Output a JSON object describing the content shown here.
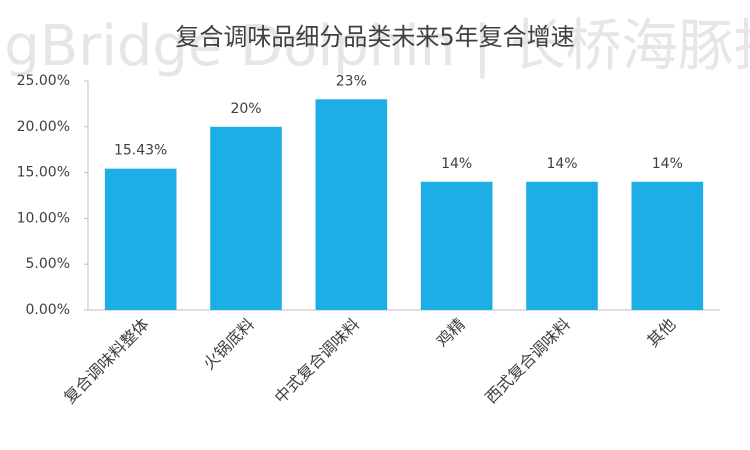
{
  "chart_data": {
    "type": "bar",
    "title": "复合调味品细分品类未来5年复合增速",
    "watermark": "LongBridge Dolphin | 长桥海豚投研",
    "categories": [
      "复合调味料整体",
      "火锅底料",
      "中式复合调味料",
      "鸡精",
      "西式复合调味料",
      "其他"
    ],
    "values": [
      15.43,
      20,
      23,
      14,
      14,
      14
    ],
    "value_labels": [
      "15.43%",
      "20%",
      "23%",
      "14%",
      "14%",
      "14%"
    ],
    "color": "#1eaee6",
    "ylim": [
      0,
      25
    ],
    "yticks": [
      {
        "value": 0,
        "label": "0.00%"
      },
      {
        "value": 5,
        "label": "5.00%"
      },
      {
        "value": 10,
        "label": "10.00%"
      },
      {
        "value": 15,
        "label": "15.00%"
      },
      {
        "value": 20,
        "label": "20.00%"
      },
      {
        "value": 25,
        "label": "25.00%"
      }
    ],
    "grid": false
  }
}
